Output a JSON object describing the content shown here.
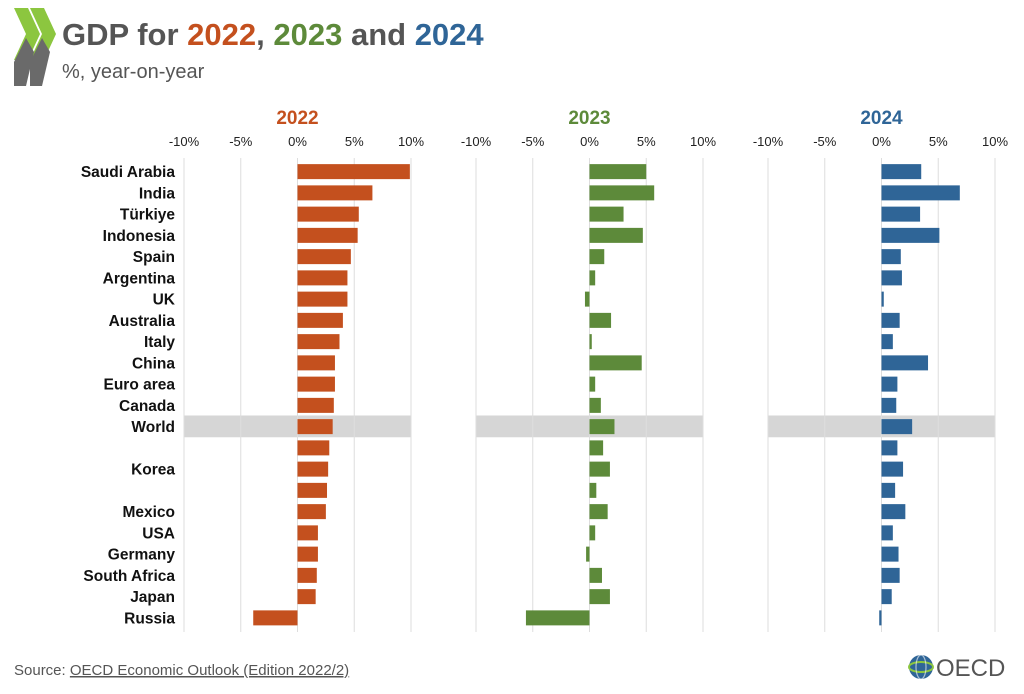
{
  "header": {
    "title_prefix": "GDP for ",
    "year_a": "2022",
    "sep1": ", ",
    "year_b": "2023",
    "sep2": " and ",
    "year_c": "2024",
    "subtitle": "%, year-on-year"
  },
  "footer": {
    "source_prefix": "Source: ",
    "source_link": "OECD Economic Outlook (Edition 2022/2)",
    "logo_text": "OECD"
  },
  "colors": {
    "y2022": "#c4501e",
    "y2023": "#5d8a3a",
    "y2024": "#2f6597",
    "grid": "#dddddd",
    "highlight": "#d6d6d6",
    "logo_chevron_dark": "#6a6a6a",
    "logo_chevron_light": "#8cc63f"
  },
  "icons": {
    "logo": "oecd-chevron-logo",
    "footer_logo": "oecd-globe-logo"
  },
  "chart_data": {
    "type": "bar",
    "orientation": "horizontal",
    "title": "GDP for 2022, 2023 and 2024",
    "subtitle": "%, year-on-year",
    "xlim": [
      -10,
      10
    ],
    "ticks": [
      -10,
      -5,
      0,
      5,
      10
    ],
    "tick_labels": [
      "-10%",
      "-5%",
      "0%",
      "5%",
      "10%"
    ],
    "highlight_category": "World",
    "categories": [
      "Saudi Arabia",
      "India",
      "Türkiye",
      "Indonesia",
      "Spain",
      "Argentina",
      "UK",
      "Australia",
      "Italy",
      "China",
      "Euro area",
      "Canada",
      "World",
      "",
      "Korea",
      "",
      "Mexico",
      "USA",
      "Germany",
      "South Africa",
      "Japan",
      "Russia"
    ],
    "series": [
      {
        "name": "2022",
        "values": [
          9.9,
          6.6,
          5.4,
          5.3,
          4.7,
          4.4,
          4.4,
          4.0,
          3.7,
          3.3,
          3.3,
          3.2,
          3.1,
          2.8,
          2.7,
          2.6,
          2.5,
          1.8,
          1.8,
          1.7,
          1.6,
          -3.9
        ]
      },
      {
        "name": "2023",
        "values": [
          5.0,
          5.7,
          3.0,
          4.7,
          1.3,
          0.5,
          -0.4,
          1.9,
          0.2,
          4.6,
          0.5,
          1.0,
          2.2,
          1.2,
          1.8,
          0.6,
          1.6,
          0.5,
          -0.3,
          1.1,
          1.8,
          -5.6
        ]
      },
      {
        "name": "2024",
        "values": [
          3.5,
          6.9,
          3.4,
          5.1,
          1.7,
          1.8,
          0.2,
          1.6,
          1.0,
          4.1,
          1.4,
          1.3,
          2.7,
          1.4,
          1.9,
          1.2,
          2.1,
          1.0,
          1.5,
          1.6,
          0.9,
          -0.2
        ]
      }
    ]
  }
}
